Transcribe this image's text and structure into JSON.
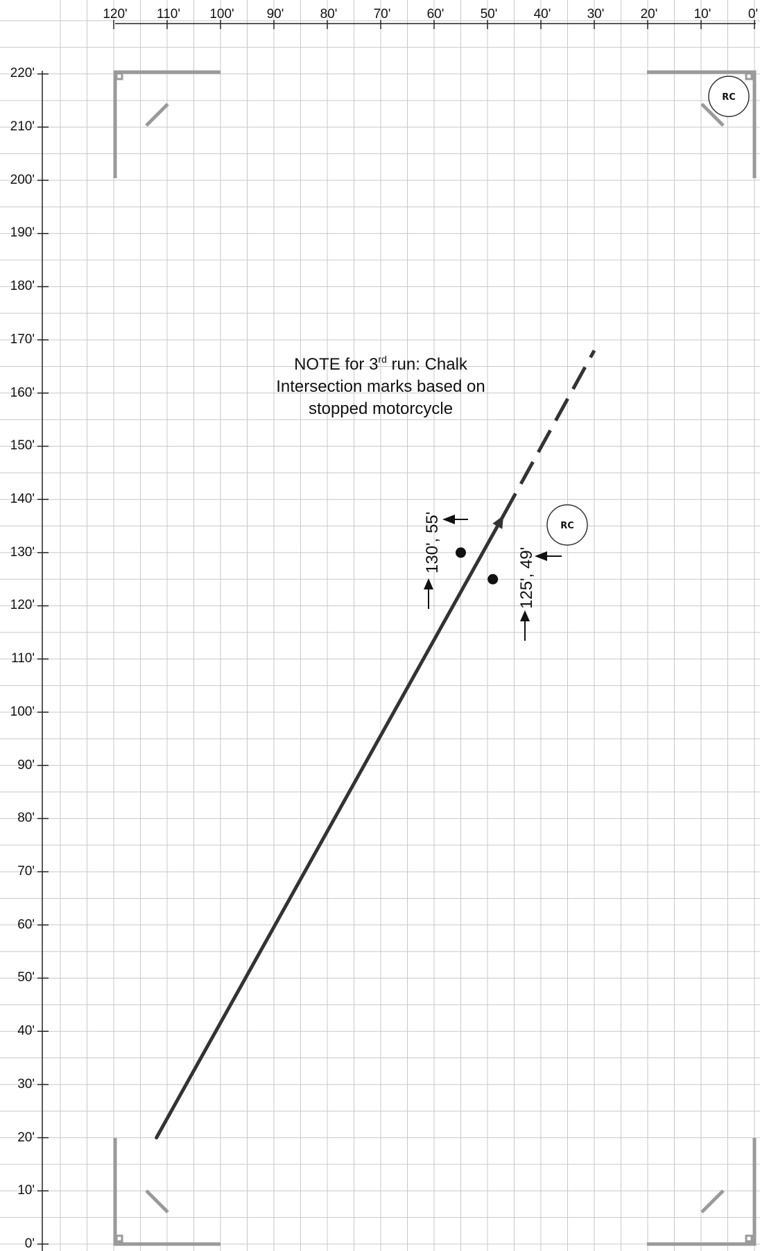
{
  "top_axis": {
    "labels": [
      "120'",
      "110'",
      "100'",
      "90'",
      "80'",
      "70'",
      "60'",
      "50'",
      "40'",
      "30'",
      "20'",
      "10'",
      "0'"
    ]
  },
  "left_axis": {
    "labels": [
      "220'",
      "210'",
      "200'",
      "190'",
      "180'",
      "170'",
      "160'",
      "150'",
      "140'",
      "130'",
      "120'",
      "110'",
      "100'",
      "90'",
      "80'",
      "70'",
      "60'",
      "50'",
      "40'",
      "30'",
      "20'",
      "10'",
      "0'"
    ]
  },
  "note": {
    "line1_before": "NOTE for 3",
    "line1_sup": "rd",
    "line1_after": " run: Chalk",
    "line2": "Intersection marks based on",
    "line3": "stopped motorcycle"
  },
  "markers": [
    {
      "label": "130', 55'",
      "x_ft": 55,
      "y_ft": 130
    },
    {
      "label": "125', 49'",
      "x_ft": 49,
      "y_ft": 125
    }
  ],
  "path": {
    "solid_start": {
      "x_ft": 112,
      "y_ft": 20
    },
    "solid_end": {
      "x_ft": 47,
      "y_ft": 137
    },
    "dashed_end": {
      "x_ft": 30,
      "y_ft": 168
    }
  },
  "rc_symbols": [
    {
      "label": "RC",
      "x_ft": 5,
      "y_ft": 215
    },
    {
      "label": "RC",
      "x_ft": 35,
      "y_ft": 130
    }
  ],
  "colors": {
    "grid": "#c8c8c8",
    "path": "#333333",
    "corner": "#9a9a9a",
    "axis": "#222222"
  }
}
